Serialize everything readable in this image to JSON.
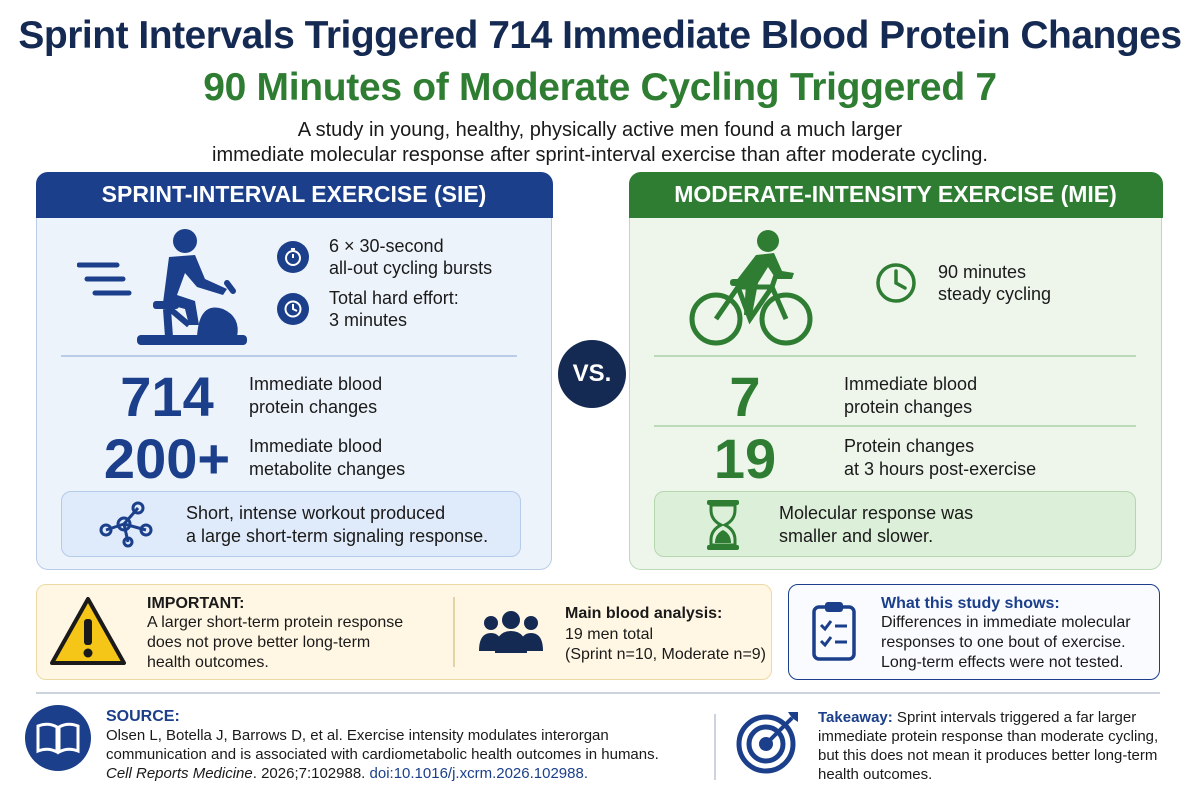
{
  "header": {
    "title_line1": "Sprint Intervals Triggered 714 Immediate Blood Protein Changes",
    "title_line2": "90 Minutes of Moderate Cycling Triggered 7",
    "subtitle_line1": "A study in young, healthy, physically active men found a much larger",
    "subtitle_line2": "immediate molecular response after sprint-interval exercise than after moderate cycling."
  },
  "sie": {
    "heading": "SPRINT-INTERVAL EXERCISE (SIE)",
    "feature1_line1": "6 × 30-second",
    "feature1_line2": "all-out cycling bursts",
    "feature2_line1": "Total hard effort:",
    "feature2_line2": "3 minutes",
    "stat1_value": "714",
    "stat1_line1": "Immediate blood",
    "stat1_line2": "protein changes",
    "stat2_value": "200+",
    "stat2_line1": "Immediate blood",
    "stat2_line2": "metabolite changes",
    "note_line1": "Short, intense workout produced",
    "note_line2": "a large short-term signaling response."
  },
  "vs_label": "VS.",
  "mie": {
    "heading": "MODERATE-INTENSITY EXERCISE (MIE)",
    "feature1_line1": "90 minutes",
    "feature1_line2": "steady cycling",
    "stat1_value": "7",
    "stat1_line1": "Immediate blood",
    "stat1_line2": "protein changes",
    "stat2_value": "19",
    "stat2_line1": "Protein changes",
    "stat2_line2": "at 3 hours post-exercise",
    "note_line1": "Molecular response was",
    "note_line2": "smaller and slower."
  },
  "important": {
    "title": "IMPORTANT:",
    "line1": "A larger short-term protein response",
    "line2": "does not prove better long-term",
    "line3": "health outcomes."
  },
  "analysis": {
    "title": "Main blood analysis:",
    "line1": "19 men total",
    "line2": "(Sprint n=10, Moderate n=9)"
  },
  "shows": {
    "title": "What this study shows:",
    "line1": "Differences in immediate molecular",
    "line2": "responses to one bout of exercise.",
    "line3": "Long-term effects were not tested."
  },
  "source": {
    "label": "SOURCE:",
    "line1": "Olsen L, Botella J, Barrows D, et al. Exercise intensity modulates interorgan",
    "line2": "communication and is associated with cardiometabolic health outcomes in humans.",
    "journal": "Cell Reports Medicine",
    "citation": ". 2026;7:102988. ",
    "doi": "doi:10.1016/j.xcrm.2026.102988."
  },
  "takeaway": {
    "label": "Takeaway:",
    "line1": " Sprint intervals triggered a far larger",
    "line2": "immediate protein response than moderate cycling,",
    "line3": "but this does not mean it produces better long-term",
    "line4": "health outcomes."
  },
  "icons": {
    "sprint_bike": "stationary-bike-rider-icon",
    "stopwatch": "stopwatch-icon",
    "clock": "clock-icon",
    "cyclist": "cyclist-icon",
    "network": "network-nodes-icon",
    "hourglass": "hourglass-icon",
    "warning": "warning-triangle-icon",
    "people": "people-group-icon",
    "clipboard": "clipboard-checklist-icon",
    "book": "open-book-icon",
    "target": "target-arrow-icon"
  },
  "colors": {
    "navy": "#152a52",
    "sprint_blue": "#1b3f8a",
    "moderate_green": "#2e7d32",
    "warning_yellow": "#f5c518"
  }
}
